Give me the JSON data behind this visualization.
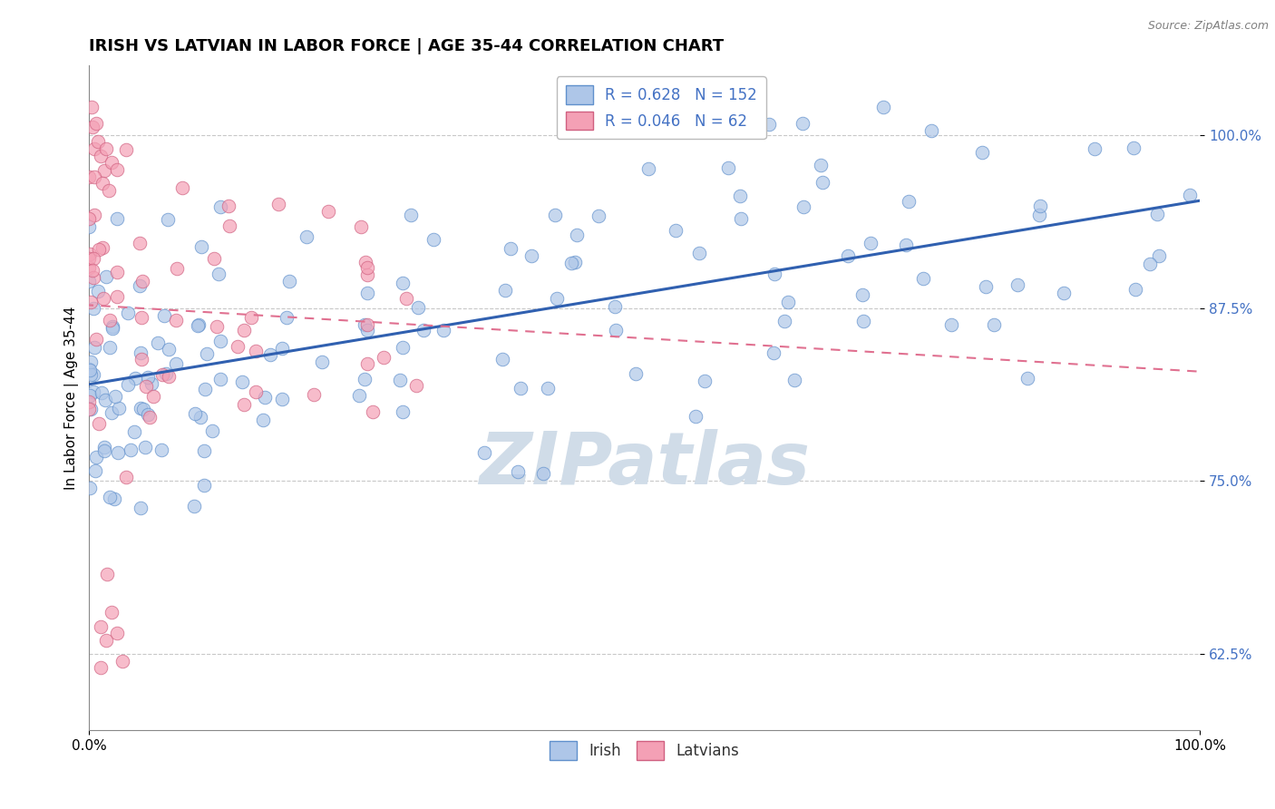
{
  "title": "IRISH VS LATVIAN IN LABOR FORCE | AGE 35-44 CORRELATION CHART",
  "source_text": "Source: ZipAtlas.com",
  "ylabel": "In Labor Force | Age 35-44",
  "xlim": [
    0.0,
    1.0
  ],
  "ylim": [
    0.57,
    1.05
  ],
  "yticks": [
    0.625,
    0.75,
    0.875,
    1.0
  ],
  "ytick_labels": [
    "62.5%",
    "75.0%",
    "87.5%",
    "100.0%"
  ],
  "xtick_labels": [
    "0.0%",
    "100.0%"
  ],
  "xticks": [
    0.0,
    1.0
  ],
  "irish_R": 0.628,
  "irish_N": 152,
  "latvian_R": 0.046,
  "latvian_N": 62,
  "irish_color": "#aec6e8",
  "latvian_color": "#f4a0b5",
  "irish_edge_color": "#6090cc",
  "latvian_edge_color": "#d06080",
  "irish_line_color": "#3060b0",
  "latvian_line_color": "#e07090",
  "label_color": "#4472c4",
  "watermark_color": "#d0dce8",
  "background_color": "#ffffff",
  "title_fontsize": 13,
  "axis_label_fontsize": 11,
  "legend_fontsize": 12,
  "irish_seed": 42,
  "latvian_seed": 17
}
